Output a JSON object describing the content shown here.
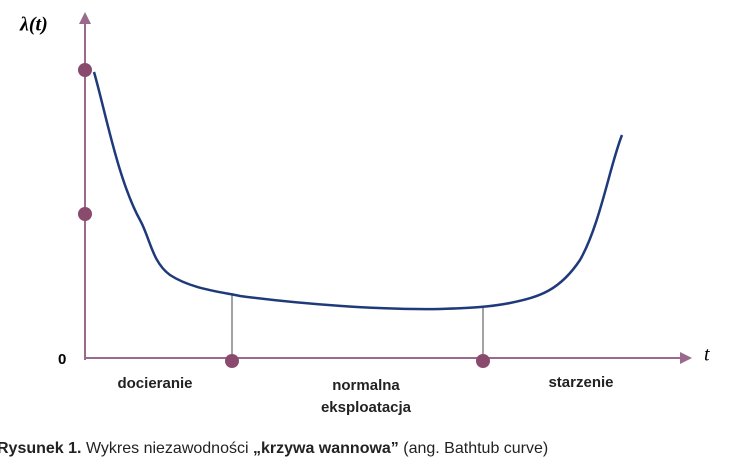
{
  "diagram": {
    "y_axis_label": "λ(t)",
    "x_axis_label": "t",
    "origin_label": "0",
    "phases": [
      {
        "lines": [
          "docieranie"
        ]
      },
      {
        "lines": [
          "normalna",
          "eksploatacja"
        ]
      },
      {
        "lines": [
          "starzenie"
        ]
      }
    ]
  },
  "caption": {
    "figure": "Rysunek 1.",
    "text": "Wykres niezawodności",
    "name": "„krzywa wannowa”",
    "note": "(ang. Bathtub curve)"
  }
}
